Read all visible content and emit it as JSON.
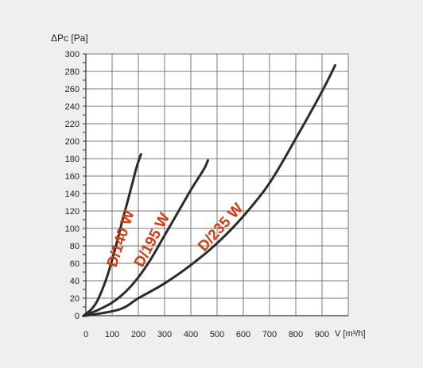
{
  "chart_data": {
    "type": "line",
    "ylabel": "ΔPc [Pa]",
    "xlabel": "V [m³/h]",
    "xlim": [
      0,
      1000
    ],
    "ylim": [
      0,
      300
    ],
    "xticks": [
      0,
      100,
      200,
      300,
      400,
      500,
      600,
      700,
      800,
      900
    ],
    "yticks": [
      0,
      20,
      40,
      60,
      80,
      100,
      120,
      140,
      160,
      180,
      200,
      220,
      240,
      260,
      280,
      300
    ],
    "grid": true,
    "series": [
      {
        "name": "D/140 W",
        "points": [
          [
            -8,
            0
          ],
          [
            0,
            2
          ],
          [
            20,
            7
          ],
          [
            40,
            15
          ],
          [
            60,
            28
          ],
          [
            80,
            44
          ],
          [
            100,
            64
          ],
          [
            120,
            86
          ],
          [
            140,
            110
          ],
          [
            160,
            132
          ],
          [
            180,
            155
          ],
          [
            195,
            172
          ],
          [
            210,
            185
          ]
        ]
      },
      {
        "name": "D/195 W",
        "points": [
          [
            -8,
            0
          ],
          [
            0,
            1
          ],
          [
            50,
            7
          ],
          [
            100,
            15
          ],
          [
            150,
            27
          ],
          [
            200,
            44
          ],
          [
            250,
            66
          ],
          [
            300,
            92
          ],
          [
            350,
            118
          ],
          [
            400,
            144
          ],
          [
            450,
            168
          ],
          [
            465,
            178
          ]
        ]
      },
      {
        "name": "D/235 W",
        "points": [
          [
            -8,
            0
          ],
          [
            0,
            0
          ],
          [
            100,
            5
          ],
          [
            150,
            10
          ],
          [
            200,
            20
          ],
          [
            300,
            37
          ],
          [
            400,
            58
          ],
          [
            500,
            83
          ],
          [
            600,
            114
          ],
          [
            700,
            152
          ],
          [
            800,
            203
          ],
          [
            900,
            257
          ],
          [
            950,
            287
          ]
        ]
      }
    ],
    "label_color": "#d23c14",
    "line_color": "#2b2b2b"
  }
}
